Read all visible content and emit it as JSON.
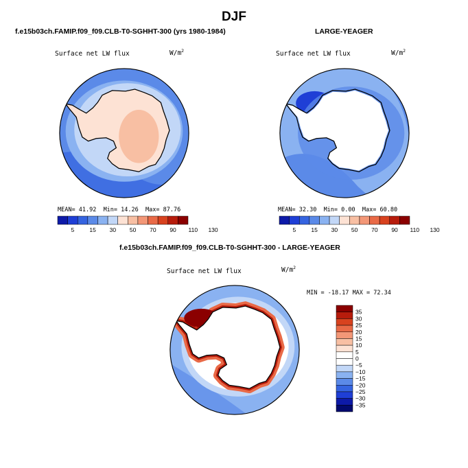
{
  "figure": {
    "title": "DJF",
    "left_title": "f.e15b03ch.FAMIP.f09_f09.CLB-T0-SGHHT-300 (yrs 1980-1984)",
    "right_title": "LARGE-YEAGER",
    "diff_title": "f.e15b03ch.FAMIP.f09_f09.CLB-T0-SGHHT-300 - LARGE-YEAGER"
  },
  "chart_data": [
    {
      "type": "heatmap",
      "projection": "polar-stereographic-south",
      "panel": "model",
      "variable": "Surface net LW flux",
      "units": "W/m2",
      "stats": {
        "mean_label": "MEAN=",
        "mean": "41.92",
        "min_label": "Min=",
        "min": "14.26",
        "max_label": "Max=",
        "max": "87.76"
      },
      "colorbar": {
        "orientation": "horizontal",
        "levels": [
          5,
          15,
          30,
          50,
          70,
          90,
          110,
          130
        ],
        "labels": [
          "5",
          "15",
          "30",
          "50",
          "70",
          "90",
          "110",
          "130"
        ],
        "colors": [
          "#0d1aa8",
          "#1f3fd6",
          "#3564e0",
          "#5b8ae8",
          "#8ab2f1",
          "#c2d7f7",
          "#fde2d4",
          "#f8bfa3",
          "#f39777",
          "#e96a47",
          "#d8421f",
          "#b71c0c",
          "#8b0000"
        ]
      }
    },
    {
      "type": "heatmap",
      "projection": "polar-stereographic-south",
      "panel": "observations",
      "variable": "Surface net LW flux",
      "units": "W/m2",
      "stats": {
        "mean_label": "MEAN=",
        "mean": "32.30",
        "min_label": "Min=",
        "min": "0.00",
        "max_label": "Max=",
        "max": "60.80"
      },
      "colorbar": {
        "orientation": "horizontal",
        "levels": [
          5,
          15,
          30,
          50,
          70,
          90,
          110,
          130
        ],
        "labels": [
          "5",
          "15",
          "30",
          "50",
          "70",
          "90",
          "110",
          "130"
        ],
        "colors": [
          "#0d1aa8",
          "#1f3fd6",
          "#3564e0",
          "#5b8ae8",
          "#8ab2f1",
          "#c2d7f7",
          "#fde2d4",
          "#f8bfa3",
          "#f39777",
          "#e96a47",
          "#d8421f",
          "#b71c0c",
          "#8b0000"
        ]
      }
    },
    {
      "type": "heatmap",
      "projection": "polar-stereographic-south",
      "panel": "difference",
      "variable": "Surface net LW flux",
      "units": "W/m2",
      "stats": {
        "min_label": "MIN =",
        "min": "-18.17",
        "max_label": "MAX =",
        "max": "72.34"
      },
      "colorbar": {
        "orientation": "vertical",
        "levels": [
          35,
          30,
          25,
          20,
          15,
          10,
          5,
          0,
          -5,
          -10,
          -15,
          -20,
          -25,
          -30,
          -35
        ],
        "labels": [
          "35",
          "30",
          "25",
          "20",
          "15",
          "10",
          "5",
          "0",
          "−5",
          "−10",
          "−15",
          "−20",
          "−25",
          "−30",
          "−35"
        ],
        "colors": [
          "#8b0000",
          "#b71c0c",
          "#d8421f",
          "#e96a47",
          "#f39777",
          "#f8bfa3",
          "#fde2d4",
          "#ffffff",
          "#ffffff",
          "#c2d7f7",
          "#8ab2f1",
          "#5b8ae8",
          "#3564e0",
          "#1f3fd6",
          "#0d1aa8",
          "#020a6e"
        ]
      }
    }
  ],
  "map_colors": {
    "land": "#ffffff",
    "ocean_light": "#8ab2f1",
    "ocean_mid": "#5b8ae8",
    "ocean_dark": "#3564e0",
    "ice_model": "#fde2d4",
    "ice_model_warm": "#f8bfa3",
    "coastline": "#000000"
  }
}
